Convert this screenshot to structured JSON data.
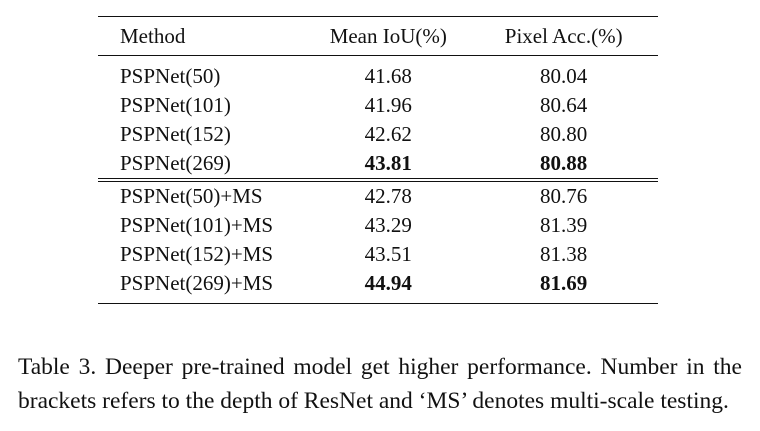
{
  "table": {
    "columns": [
      "Method",
      "Mean IoU(%)",
      "Pixel Acc.(%)"
    ],
    "groups": [
      {
        "rows": [
          {
            "method": "PSPNet(50)",
            "miou": "41.68",
            "pacc": "80.04",
            "bold": false
          },
          {
            "method": "PSPNet(101)",
            "miou": "41.96",
            "pacc": "80.64",
            "bold": false
          },
          {
            "method": "PSPNet(152)",
            "miou": "42.62",
            "pacc": "80.80",
            "bold": false
          },
          {
            "method": "PSPNet(269)",
            "miou": "43.81",
            "pacc": "80.88",
            "bold": true
          }
        ]
      },
      {
        "rows": [
          {
            "method": "PSPNet(50)+MS",
            "miou": "42.78",
            "pacc": "80.76",
            "bold": false
          },
          {
            "method": "PSPNet(101)+MS",
            "miou": "43.29",
            "pacc": "81.39",
            "bold": false
          },
          {
            "method": "PSPNet(152)+MS",
            "miou": "43.51",
            "pacc": "81.38",
            "bold": false
          },
          {
            "method": "PSPNet(269)+MS",
            "miou": "44.94",
            "pacc": "81.69",
            "bold": true
          }
        ]
      }
    ]
  },
  "caption": "Table 3. Deeper pre-trained model get higher performance. Number in the brackets refers to the depth of ResNet and ‘MS’ denotes multi-scale testing."
}
